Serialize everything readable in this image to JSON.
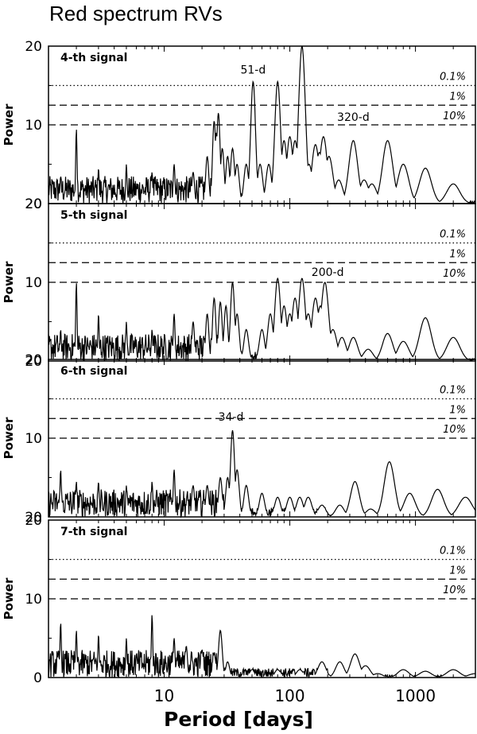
{
  "title": "Red spectrum RVs",
  "chart_data": {
    "type": "line",
    "title": "Red spectrum RVs",
    "xlabel": "Period [days]",
    "ylabel": "Power",
    "x_scale": "log",
    "xlim": [
      1.2,
      3000
    ],
    "ylim": [
      0,
      20
    ],
    "xticks": [
      10,
      100,
      1000
    ],
    "xtick_labels": [
      "10",
      "100",
      "1000"
    ],
    "thresholds": [
      {
        "label": "0.1%",
        "power": 15,
        "style": "dotted"
      },
      {
        "label": "1%",
        "power": 12.5,
        "style": "dashed"
      },
      {
        "label": "10%",
        "power": 10,
        "style": "dashed"
      }
    ],
    "panels": [
      {
        "label": "4-th signal",
        "ytick_labels": [
          "20",
          "10",
          "20"
        ],
        "peaks": [
          [
            1.5,
            3.5
          ],
          [
            2,
            9.5
          ],
          [
            3,
            4.5
          ],
          [
            5,
            5
          ],
          [
            8,
            4
          ],
          [
            12,
            5
          ],
          [
            17,
            4
          ],
          [
            22,
            6
          ],
          [
            25,
            10.5
          ],
          [
            26,
            9
          ],
          [
            27,
            11.5
          ],
          [
            29,
            7
          ],
          [
            32,
            6
          ],
          [
            35,
            7
          ],
          [
            38,
            5
          ],
          [
            45,
            5
          ],
          [
            51,
            15.5
          ],
          [
            58,
            5
          ],
          [
            68,
            5
          ],
          [
            80,
            15.5
          ],
          [
            90,
            8
          ],
          [
            100,
            8.5
          ],
          [
            110,
            8
          ],
          [
            125,
            20
          ],
          [
            142,
            5
          ],
          [
            160,
            7.5
          ],
          [
            172,
            6.5
          ],
          [
            185,
            8.5
          ],
          [
            205,
            6
          ],
          [
            245,
            3
          ],
          [
            320,
            8
          ],
          [
            390,
            3
          ],
          [
            450,
            2.5
          ],
          [
            600,
            8
          ],
          [
            800,
            5
          ],
          [
            1200,
            4.5
          ],
          [
            2000,
            2.5
          ]
        ],
        "annotations": [
          {
            "text": "51-d",
            "period": 51,
            "power": 16.5
          },
          {
            "text": "320-d",
            "period": 320,
            "power": 10.5
          }
        ]
      },
      {
        "label": "5-th signal",
        "ytick_labels": [
          "20",
          "10",
          "20"
        ],
        "peaks": [
          [
            1.5,
            4
          ],
          [
            2,
            10
          ],
          [
            3,
            6
          ],
          [
            5,
            5
          ],
          [
            8,
            4
          ],
          [
            12,
            6
          ],
          [
            17,
            5
          ],
          [
            22,
            6
          ],
          [
            25,
            8
          ],
          [
            28,
            7.5
          ],
          [
            31,
            7
          ],
          [
            35,
            10
          ],
          [
            38,
            6
          ],
          [
            45,
            4
          ],
          [
            60,
            4
          ],
          [
            70,
            6
          ],
          [
            80,
            10.5
          ],
          [
            90,
            7
          ],
          [
            100,
            6
          ],
          [
            110,
            8
          ],
          [
            125,
            10.5
          ],
          [
            140,
            6
          ],
          [
            160,
            8
          ],
          [
            175,
            7
          ],
          [
            190,
            10
          ],
          [
            220,
            4
          ],
          [
            260,
            3
          ],
          [
            320,
            3
          ],
          [
            420,
            1.5
          ],
          [
            600,
            3.5
          ],
          [
            800,
            2.5
          ],
          [
            1200,
            5.5
          ],
          [
            2000,
            3
          ]
        ],
        "annotations": [
          {
            "text": "200-d",
            "period": 200,
            "power": 10.8
          }
        ]
      },
      {
        "label": "6-th signal",
        "ytick_labels": [
          "20",
          "10",
          "20"
        ],
        "peaks": [
          [
            1.5,
            6
          ],
          [
            2,
            4.5
          ],
          [
            3,
            4.5
          ],
          [
            5,
            4
          ],
          [
            8,
            4.5
          ],
          [
            12,
            6
          ],
          [
            17,
            4
          ],
          [
            22,
            4
          ],
          [
            28,
            5
          ],
          [
            32,
            5
          ],
          [
            35,
            11
          ],
          [
            38,
            6
          ],
          [
            45,
            4
          ],
          [
            60,
            3
          ],
          [
            80,
            2.5
          ],
          [
            100,
            2.5
          ],
          [
            120,
            2.5
          ],
          [
            140,
            2.5
          ],
          [
            180,
            1.5
          ],
          [
            250,
            1.5
          ],
          [
            330,
            4.5
          ],
          [
            440,
            1
          ],
          [
            620,
            7
          ],
          [
            900,
            3
          ],
          [
            1500,
            3.5
          ],
          [
            2500,
            2.5
          ]
        ],
        "annotations": [
          {
            "text": "34-d",
            "period": 34,
            "power": 12.2
          }
        ]
      },
      {
        "label": "7-th signal",
        "ytick_labels": [
          "0",
          "10",
          "20"
        ],
        "peaks": [
          [
            1.5,
            7
          ],
          [
            2,
            6
          ],
          [
            3,
            5.5
          ],
          [
            5,
            5
          ],
          [
            8,
            8
          ],
          [
            12,
            5
          ],
          [
            15,
            4
          ],
          [
            20,
            3.5
          ],
          [
            25,
            3
          ],
          [
            28,
            6
          ],
          [
            32,
            2
          ],
          [
            50,
            1
          ],
          [
            80,
            1
          ],
          [
            120,
            1
          ],
          [
            180,
            2
          ],
          [
            250,
            2
          ],
          [
            330,
            3
          ],
          [
            400,
            1.5
          ],
          [
            500,
            0.5
          ],
          [
            800,
            1
          ],
          [
            1200,
            0.8
          ],
          [
            2000,
            1
          ],
          [
            3000,
            0.5
          ]
        ],
        "annotations": []
      }
    ]
  }
}
